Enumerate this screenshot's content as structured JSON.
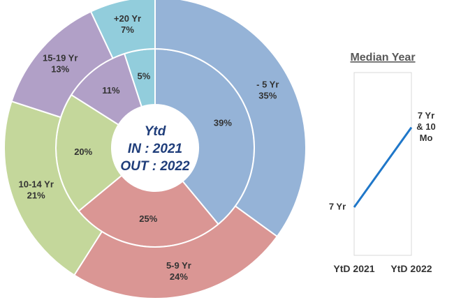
{
  "chart_data": [
    {
      "type": "pie",
      "variant": "nested-donut",
      "center_text": [
        "Ytd",
        "IN : 2021",
        "OUT : 2022"
      ],
      "categories": [
        "- 5 Yr",
        "5-9 Yr",
        "10-14 Yr",
        "15-19 Yr",
        "+20 Yr"
      ],
      "colors": [
        "#95b3d7",
        "#da9694",
        "#c4d79b",
        "#b1a0c7",
        "#92cddc"
      ],
      "series": [
        {
          "name": "IN : 2021",
          "ring": "inner",
          "values": [
            39,
            25,
            20,
            11,
            5
          ],
          "labels": [
            "39%",
            "25%",
            "20%",
            "11%",
            "5%"
          ]
        },
        {
          "name": "OUT : 2022",
          "ring": "outer",
          "values": [
            35,
            24,
            21,
            13,
            7
          ],
          "labels": [
            "- 5 Yr\n35%",
            "5-9 Yr\n24%",
            "10-14 Yr\n21%",
            "15-19 Yr\n13%",
            "+20 Yr\n7%"
          ]
        }
      ]
    },
    {
      "type": "line",
      "title": "Median Year",
      "categories": [
        "YtD 2021",
        "YtD 2022"
      ],
      "values": [
        7.0,
        7.83
      ],
      "point_labels": [
        "7 Yr",
        "7 Yr\n& 10\nMo"
      ],
      "line_color": "#1f77c9"
    }
  ]
}
